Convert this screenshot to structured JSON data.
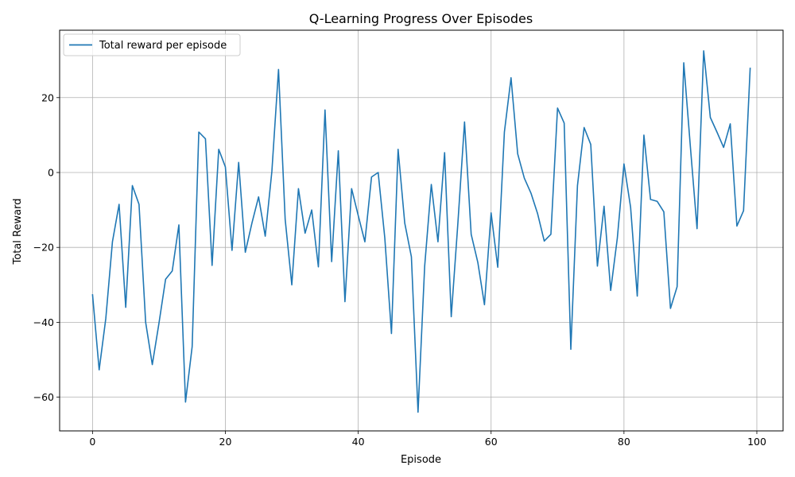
{
  "chart_data": {
    "type": "line",
    "title": "Q-Learning Progress Over Episodes",
    "xlabel": "Episode",
    "ylabel": "Total Reward",
    "xlim": [
      -4.95,
      103.95
    ],
    "ylim": [
      -69,
      38
    ],
    "xticks": [
      0,
      20,
      40,
      60,
      80,
      100
    ],
    "yticks": [
      -60,
      -40,
      -20,
      0,
      20
    ],
    "grid": true,
    "legend_position": "top-left",
    "series": [
      {
        "name": "Total reward per episode",
        "color": "#1f77b4",
        "x": [
          0,
          1,
          2,
          3,
          4,
          5,
          6,
          7,
          8,
          9,
          10,
          11,
          12,
          13,
          14,
          15,
          16,
          17,
          18,
          19,
          20,
          21,
          22,
          23,
          24,
          25,
          26,
          27,
          28,
          29,
          30,
          31,
          32,
          33,
          34,
          35,
          36,
          37,
          38,
          39,
          40,
          41,
          42,
          43,
          44,
          45,
          46,
          47,
          48,
          49,
          50,
          51,
          52,
          53,
          54,
          55,
          56,
          57,
          58,
          59,
          60,
          61,
          62,
          63,
          64,
          65,
          66,
          67,
          68,
          69,
          70,
          71,
          72,
          73,
          74,
          75,
          76,
          77,
          78,
          79,
          80,
          81,
          82,
          83,
          84,
          85,
          86,
          87,
          88,
          89,
          90,
          91,
          92,
          93,
          94,
          95,
          96,
          97,
          98,
          99
        ],
        "values": [
          -32.5,
          -52.7,
          -39.0,
          -18.5,
          -8.5,
          -36.0,
          -3.5,
          -8.5,
          -40.0,
          -51.3,
          -40.3,
          -28.5,
          -26.3,
          -14.0,
          -61.3,
          -46.5,
          10.8,
          9.0,
          -24.8,
          6.2,
          1.5,
          -20.8,
          2.7,
          -21.3,
          -13.5,
          -6.5,
          -17.0,
          0.3,
          27.5,
          -12.5,
          -30.0,
          -4.3,
          -16.2,
          -10.0,
          -25.2,
          16.7,
          -23.8,
          5.8,
          -34.5,
          -4.3,
          -11.5,
          -18.5,
          -1.2,
          0.0,
          -17.5,
          -43.0,
          6.2,
          -13.5,
          -22.5,
          -64.0,
          -25.0,
          -3.2,
          -18.5,
          5.3,
          -38.5,
          -13.5,
          13.5,
          -16.5,
          -24.0,
          -35.3,
          -10.8,
          -25.3,
          10.8,
          25.3,
          5.0,
          -1.5,
          -5.5,
          -11.0,
          -18.3,
          -16.5,
          17.2,
          13.2,
          -47.2,
          -3.5,
          12.0,
          7.5,
          -25.0,
          -9.0,
          -31.5,
          -17.5,
          2.3,
          -9.3,
          -33.0,
          10.0,
          -7.2,
          -7.7,
          -10.5,
          -36.3,
          -30.5,
          29.3,
          6.8,
          -15.0,
          32.5,
          14.7,
          10.8,
          6.7,
          13.0,
          -14.3,
          -10.2,
          28.0
        ]
      }
    ]
  }
}
